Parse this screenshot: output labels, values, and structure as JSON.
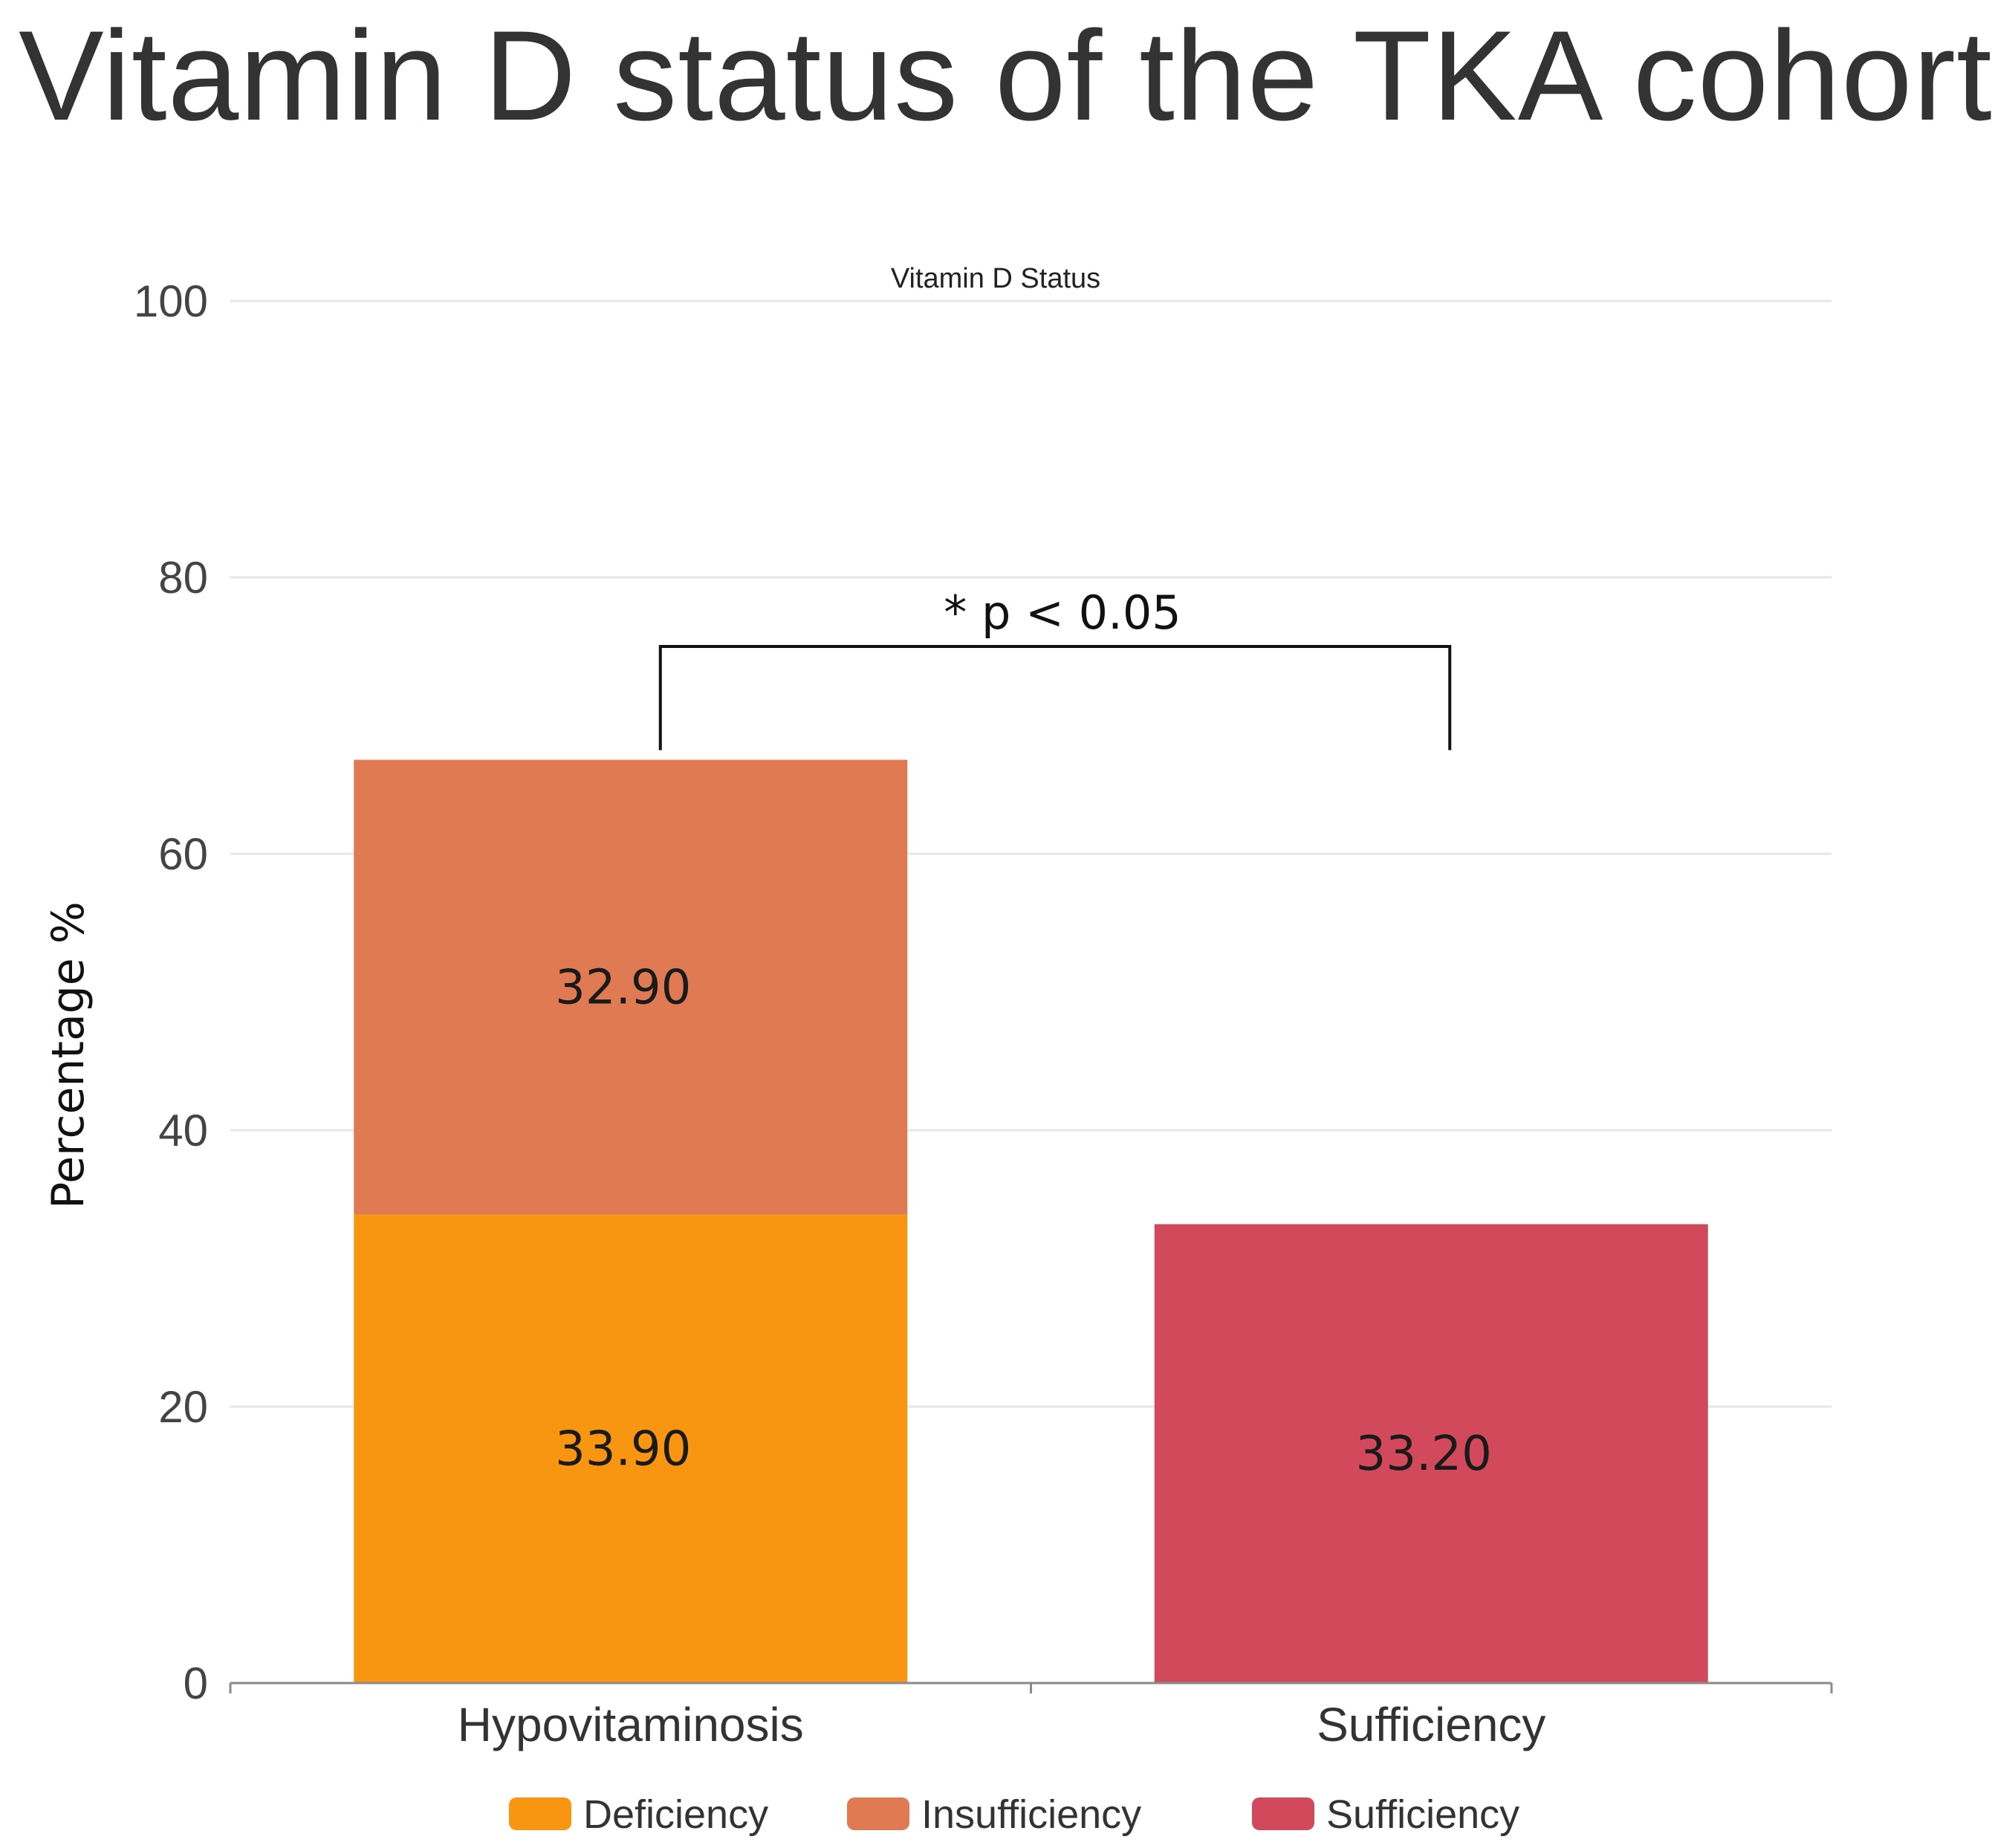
{
  "header": {
    "title": "Vitamin D status of the TKA cohort"
  },
  "chart_data": {
    "type": "bar",
    "stacked": true,
    "title": "Vitamin D status of the TKA cohort",
    "subtitle": "Vitamin D Status",
    "xlabel": "",
    "ylabel": "Percentage %",
    "ylim": [
      0,
      100
    ],
    "yticks": [
      0,
      20,
      40,
      60,
      80,
      100
    ],
    "grid": true,
    "legend_position": "bottom-center",
    "categories": [
      "Hypovitaminosis",
      "Sufficiency"
    ],
    "series": [
      {
        "name": "Deficiency",
        "color": "#F99611",
        "values": [
          33.9,
          null
        ],
        "labels": [
          "33.90",
          ""
        ]
      },
      {
        "name": "Insufficiency",
        "color": "#DF7A53",
        "values": [
          32.9,
          null
        ],
        "labels": [
          "32.90",
          ""
        ]
      },
      {
        "name": "Sufficiency",
        "color": "#D2495C",
        "values": [
          null,
          33.2
        ],
        "labels": [
          "",
          "33.20"
        ]
      }
    ],
    "annotation": {
      "text": "* p < 0.05",
      "from_category": "Hypovitaminosis",
      "to_category": "Sufficiency",
      "level": 75
    }
  }
}
